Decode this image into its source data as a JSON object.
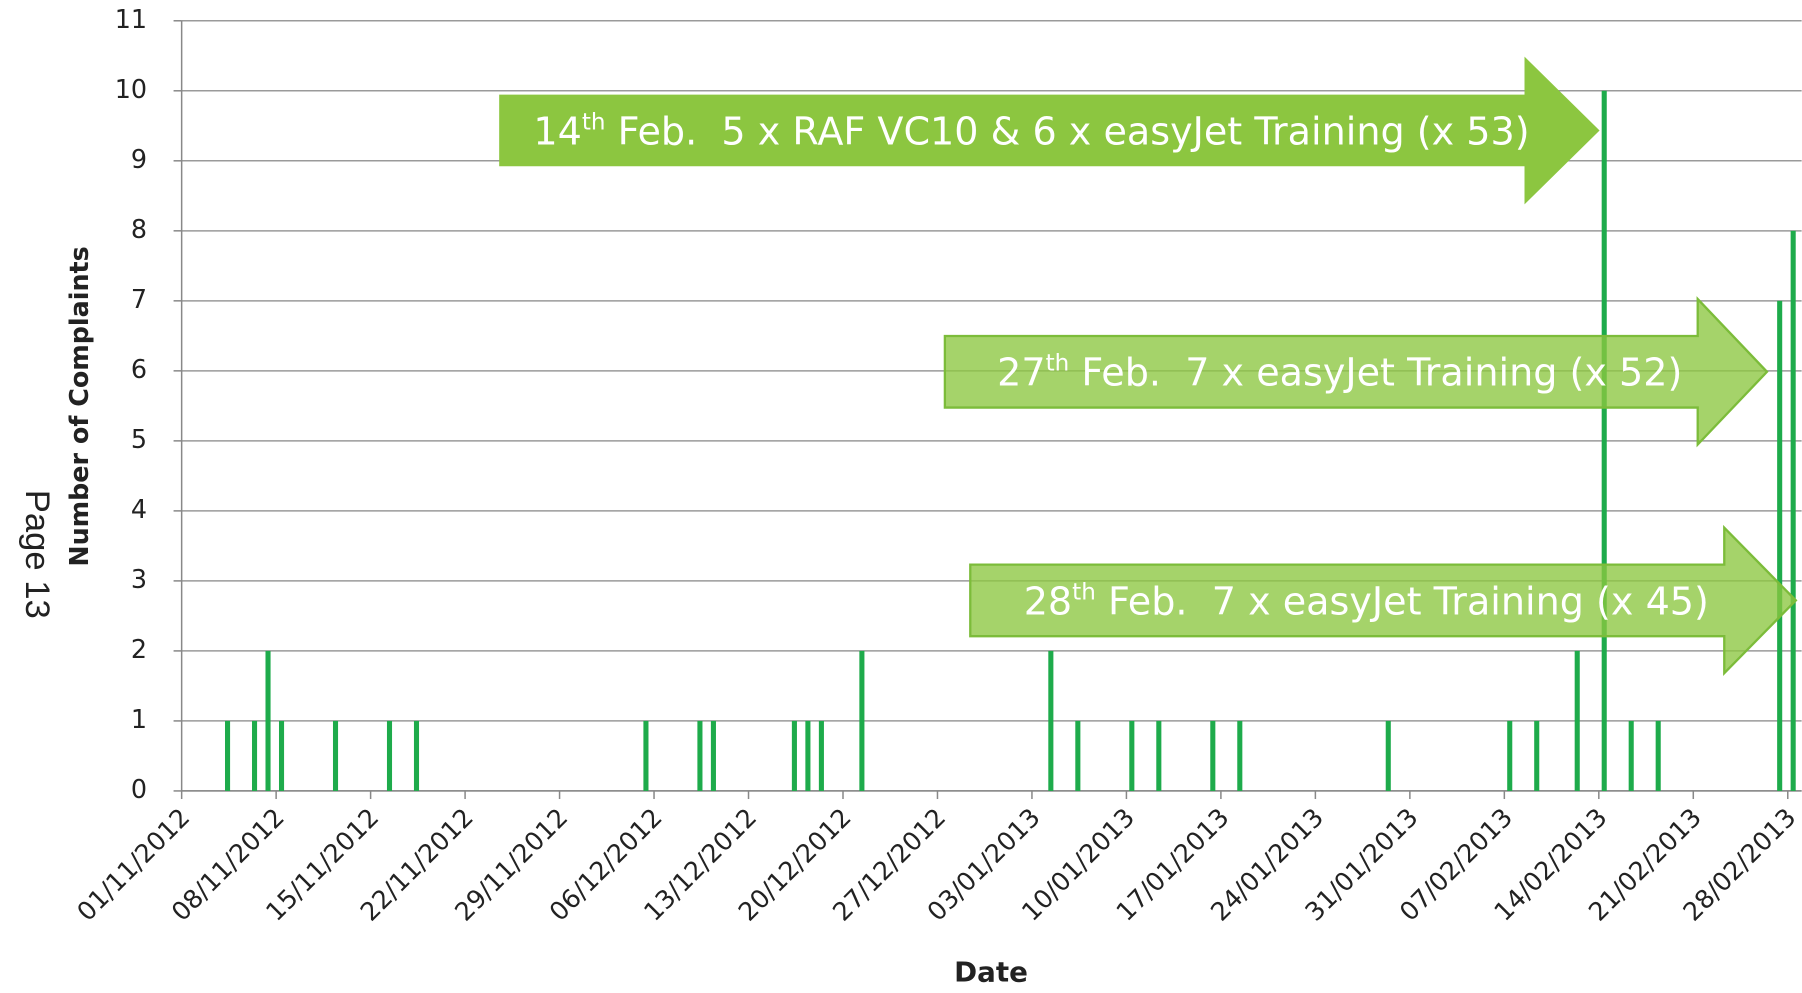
{
  "page_label": "Page 13",
  "chart_data": {
    "type": "bar",
    "xlabel": "Date",
    "ylabel": "Number of Complaints",
    "x": [
      "04/11/2012",
      "06/11/2012",
      "07/11/2012",
      "08/11/2012",
      "12/11/2012",
      "16/11/2012",
      "18/11/2012",
      "05/12/2012",
      "09/12/2012",
      "10/12/2012",
      "16/12/2012",
      "17/12/2012",
      "18/12/2012",
      "21/12/2012",
      "04/01/2013",
      "06/01/2013",
      "10/01/2013",
      "12/01/2013",
      "16/01/2013",
      "18/01/2013",
      "29/01/2013",
      "07/02/2013",
      "09/02/2013",
      "12/02/2013",
      "14/02/2013",
      "16/02/2013",
      "18/02/2013",
      "27/02/2013",
      "28/02/2013"
    ],
    "values": [
      1,
      1,
      2,
      1,
      1,
      1,
      1,
      1,
      1,
      1,
      1,
      1,
      1,
      2,
      2,
      1,
      1,
      1,
      1,
      1,
      1,
      1,
      1,
      2,
      10,
      1,
      1,
      7,
      8
    ],
    "color": "#1eab4b",
    "xlim": [
      "01/11/2012",
      "28/02/2013"
    ],
    "xticks": [
      "01/11/2012",
      "08/11/2012",
      "15/11/2012",
      "22/11/2012",
      "29/11/2012",
      "06/12/2012",
      "13/12/2012",
      "20/12/2012",
      "27/12/2012",
      "03/01/2013",
      "10/01/2013",
      "17/01/2013",
      "24/01/2013",
      "31/01/2013",
      "07/02/2013",
      "14/02/2013",
      "21/02/2013",
      "28/02/2013"
    ],
    "ylim": [
      0,
      11
    ],
    "yticks": [
      0,
      1,
      2,
      3,
      4,
      5,
      6,
      7,
      8,
      9,
      10,
      11
    ],
    "grid": true,
    "annotations": [
      {
        "day": "14",
        "suffix": "th",
        "text": " Feb.  5 x RAF VC10 & 6 x easyJet Training (x 53)"
      },
      {
        "day": "27",
        "suffix": "th",
        "text": " Feb.  7 x easyJet Training (x 52)"
      },
      {
        "day": "28",
        "suffix": "th",
        "text": " Feb.  7 x easyJet Training (x 45)"
      }
    ]
  }
}
